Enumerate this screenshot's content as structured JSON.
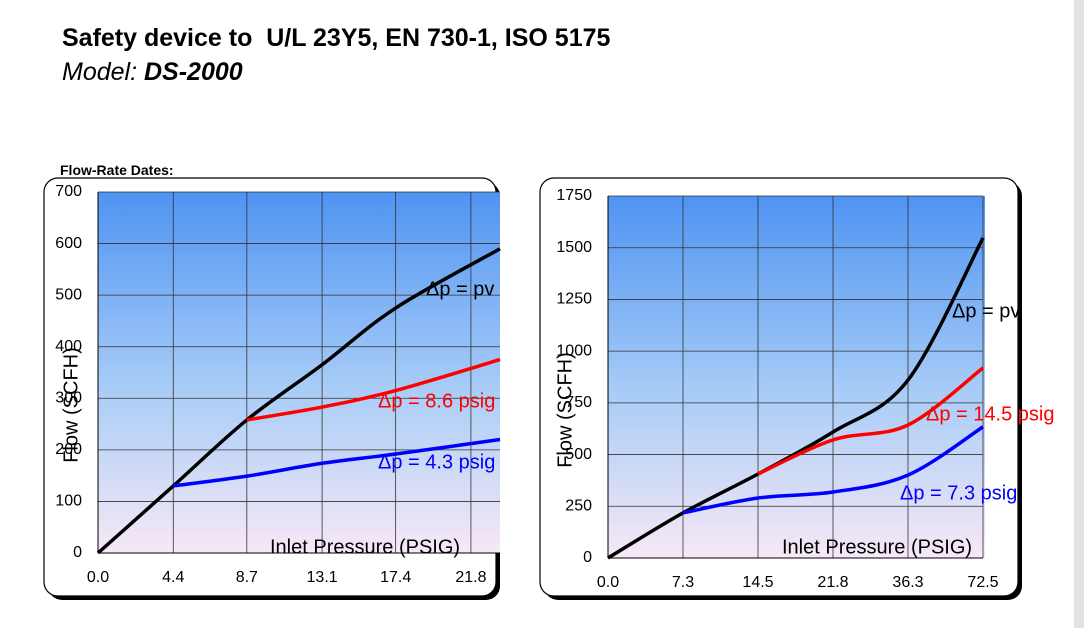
{
  "header": {
    "title": "Safety device to  U/L 23Y5, EN 730-1, ISO 5175",
    "subtitle": "Model:",
    "model": "DS-2000"
  },
  "section_label": "Flow-Rate Dates:",
  "chart_data": [
    {
      "type": "line",
      "x_label": "Inlet Pressure (PSIG)",
      "y_label": "Flow  (SCFH)",
      "x": [
        0,
        4.4,
        8.7,
        13.1,
        17.4,
        23.5
      ],
      "xlim": [
        0,
        23.5
      ],
      "xticks": [
        {
          "value": 0,
          "label": "0.0"
        },
        4.4,
        8.7,
        13.1,
        17.4,
        21.8
      ],
      "ylim": [
        0,
        700
      ],
      "yticks": [
        0,
        100,
        200,
        300,
        400,
        500,
        600,
        700
      ],
      "grid": true,
      "series": [
        {
          "name": "Δp = pv",
          "color": "#000000",
          "values": [
            0,
            130,
            258,
            365,
            475,
            590
          ]
        },
        {
          "name": "Δp = 8.6 psig",
          "color": "#ff0000",
          "values": [
            null,
            null,
            258,
            283,
            315,
            375
          ]
        },
        {
          "name": "Δp = 4.3 psig",
          "color": "#0000ff",
          "values": [
            null,
            130,
            149,
            174,
            192,
            220
          ]
        }
      ]
    },
    {
      "type": "line",
      "x_label": "Inlet Pressure (PSIG)",
      "y_label": "Flow  (SCFH)",
      "categories": [
        "0.0",
        "7.3",
        "14.5",
        "21.8",
        "36.3",
        "72.5"
      ],
      "ylim": [
        0,
        1750
      ],
      "yticks": [
        0,
        250,
        500,
        750,
        1000,
        1250,
        1500,
        1750
      ],
      "grid": true,
      "series": [
        {
          "name": "Δp = pv",
          "color": "#000000",
          "values": [
            0,
            218,
            406,
            609,
            860,
            1547
          ]
        },
        {
          "name": "Δp = 14.5 psig",
          "color": "#ff0000",
          "values": [
            null,
            null,
            406,
            571,
            643,
            919
          ]
        },
        {
          "name": "Δp = 7.3 psig",
          "color": "#0000ff",
          "values": [
            null,
            218,
            290,
            319,
            401,
            634
          ]
        }
      ]
    }
  ]
}
